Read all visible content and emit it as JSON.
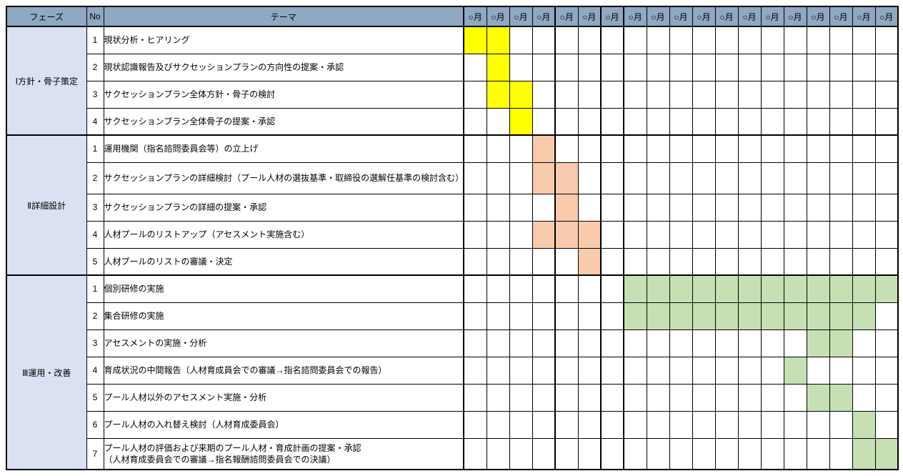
{
  "header": {
    "phase": "フェーズ",
    "no": "No",
    "theme": "テーマ",
    "month_label": "○月"
  },
  "layout": {
    "col_widths": {
      "phase": 112,
      "no": 24,
      "theme": 504,
      "month": 32
    },
    "month_count": 19,
    "thick_month_dividers_after": [
      4,
      6,
      7
    ]
  },
  "colors": {
    "header_bg": "#8ea9c1",
    "phase_bg": "#d9e1f2",
    "fills": {
      "yellow": "#ffff00",
      "orange": "#f8cbad",
      "green": "#c6e0b4"
    },
    "grid": "#000000",
    "background": "#ffffff"
  },
  "phases": [
    {
      "label": "Ⅰ方針・骨子策定",
      "rows": [
        {
          "no": "1",
          "theme": "現状分析・ヒアリング",
          "fill": "yellow",
          "cells": [
            1,
            2
          ]
        },
        {
          "no": "2",
          "theme": "現状認識報告及びサクセッションプランの方向性の提案・承認",
          "fill": "yellow",
          "cells": [
            2
          ]
        },
        {
          "no": "3",
          "theme": "サクセッションプラン全体方針・骨子の検討",
          "fill": "yellow",
          "cells": [
            2,
            3
          ]
        },
        {
          "no": "4",
          "theme": "サクセッションプラン全体骨子の提案・承認",
          "fill": "yellow",
          "cells": [
            3
          ]
        }
      ]
    },
    {
      "label": "Ⅱ詳細設計",
      "rows": [
        {
          "no": "1",
          "theme": "運用機関（指名諮問委員会等）の立上げ",
          "fill": "orange",
          "cells": [
            4
          ]
        },
        {
          "no": "2",
          "theme": "サクセッションプランの詳細検討（プール人材の選抜基準・取締役の選解任基準の検討含む）",
          "fill": "orange",
          "cells": [
            4,
            5
          ],
          "tall": true
        },
        {
          "no": "3",
          "theme": "サクセッションプランの詳細の提案・承認",
          "fill": "orange",
          "cells": [
            5
          ]
        },
        {
          "no": "4",
          "theme": "人材プールのリストアップ（アセスメント実施含む）",
          "fill": "orange",
          "cells": [
            4,
            5,
            6
          ]
        },
        {
          "no": "5",
          "theme": "人材プールのリストの審議・決定",
          "fill": "orange",
          "cells": [
            6
          ]
        }
      ]
    },
    {
      "label": "Ⅲ運用・改善",
      "rows": [
        {
          "no": "1",
          "theme": "個別研修の実施",
          "fill": "green",
          "cells": [
            8,
            9,
            10,
            11,
            12,
            13,
            14,
            15,
            16,
            17,
            18,
            19
          ]
        },
        {
          "no": "2",
          "theme": "集合研修の実施",
          "fill": "green",
          "cells": [
            8,
            9,
            10,
            11,
            12,
            13,
            14,
            15,
            16,
            17,
            18
          ]
        },
        {
          "no": "3",
          "theme": "アセスメントの実施・分析",
          "fill": "green",
          "cells": [
            16,
            17
          ]
        },
        {
          "no": "4",
          "theme": "育成状況の中間報告（人材育成員会での審議→指名諮問委員会での報告）",
          "fill": "green",
          "cells": [
            15
          ]
        },
        {
          "no": "5",
          "theme": "プール人材以外のアセスメント実施・分析",
          "fill": "green",
          "cells": [
            16,
            17
          ]
        },
        {
          "no": "6",
          "theme": "プール人材の入れ替え検討（人材育成委員会）",
          "fill": "green",
          "cells": [
            18
          ]
        },
        {
          "no": "7",
          "theme": "プール人材の評価および来期のプール人材・育成計画の提案・承認\n（人材育成委員会での審議→指名報酬諮問委員会での決議）",
          "fill": "green",
          "cells": [
            18,
            19
          ],
          "tall": true
        }
      ]
    }
  ]
}
